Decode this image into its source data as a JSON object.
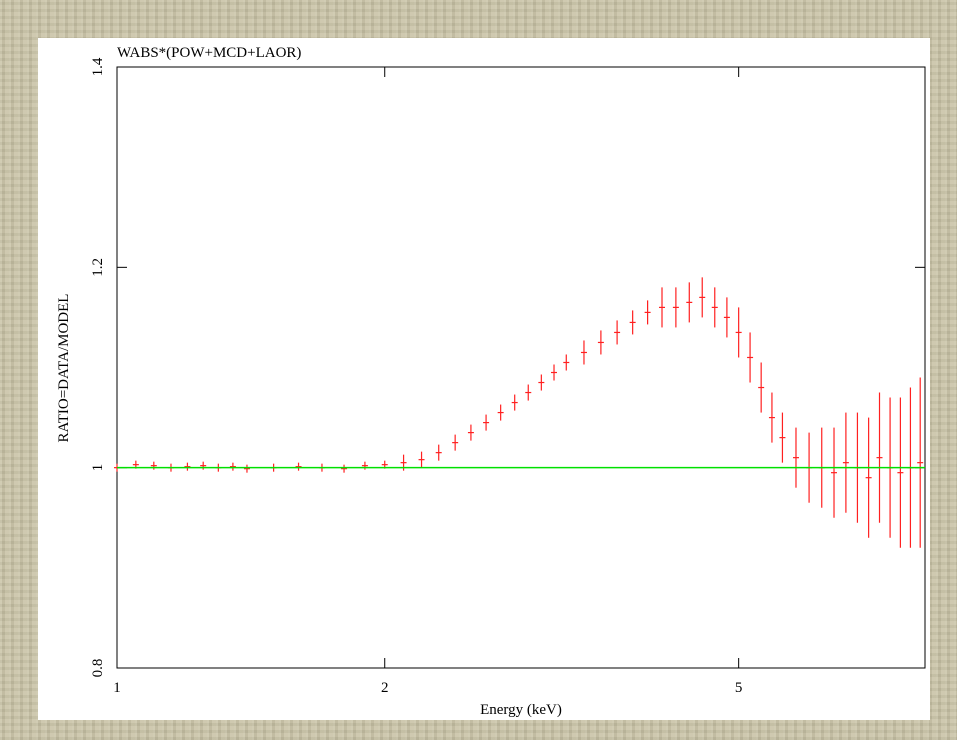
{
  "chart_data": {
    "type": "errorbar",
    "title": "WABS*(POW+MCD+LAOR)",
    "x_label": "Energy (keV)",
    "y_label": "RATIO=DATA/MODEL",
    "xscale": "log",
    "xlim": [
      1,
      8.1
    ],
    "xticks": [
      1,
      2,
      5
    ],
    "ylim": [
      0.8,
      1.4
    ],
    "yticks": [
      0.8,
      1,
      1.2,
      1.4
    ],
    "series": [
      {
        "color": "#ff2020",
        "x": [
          1.0,
          1.05,
          1.1,
          1.15,
          1.2,
          1.25,
          1.3,
          1.35,
          1.4,
          1.5,
          1.6,
          1.7,
          1.8,
          1.9,
          2.0,
          2.1,
          2.2,
          2.3,
          2.4,
          2.5,
          2.6,
          2.7,
          2.8,
          2.9,
          3.0,
          3.1,
          3.2,
          3.35,
          3.5,
          3.65,
          3.8,
          3.95,
          4.1,
          4.25,
          4.4,
          4.55,
          4.7,
          4.85,
          5.0,
          5.15,
          5.3,
          5.45,
          5.6,
          5.8,
          6.0,
          6.2,
          6.4,
          6.6,
          6.8,
          7.0,
          7.2,
          7.4,
          7.6,
          7.8,
          8.0
        ],
        "values": [
          1.0,
          1.003,
          1.002,
          1.0,
          1.001,
          1.002,
          1.0,
          1.001,
          0.999,
          1.0,
          1.001,
          1.0,
          0.999,
          1.002,
          1.003,
          1.005,
          1.008,
          1.015,
          1.025,
          1.035,
          1.045,
          1.055,
          1.065,
          1.075,
          1.085,
          1.095,
          1.105,
          1.115,
          1.125,
          1.135,
          1.145,
          1.155,
          1.16,
          1.16,
          1.165,
          1.17,
          1.16,
          1.15,
          1.135,
          1.11,
          1.08,
          1.05,
          1.03,
          1.01,
          1.0,
          1.0,
          0.995,
          1.005,
          1.0,
          0.99,
          1.01,
          1.0,
          0.995,
          1.0,
          1.005
        ],
        "errors": [
          0.004,
          0.004,
          0.004,
          0.004,
          0.004,
          0.004,
          0.004,
          0.004,
          0.004,
          0.004,
          0.004,
          0.004,
          0.004,
          0.004,
          0.004,
          0.008,
          0.008,
          0.008,
          0.008,
          0.008,
          0.008,
          0.008,
          0.008,
          0.008,
          0.008,
          0.008,
          0.008,
          0.012,
          0.012,
          0.012,
          0.012,
          0.012,
          0.02,
          0.02,
          0.02,
          0.02,
          0.02,
          0.02,
          0.025,
          0.025,
          0.025,
          0.025,
          0.025,
          0.03,
          0.035,
          0.04,
          0.045,
          0.05,
          0.055,
          0.06,
          0.065,
          0.07,
          0.075,
          0.08,
          0.085
        ]
      },
      {
        "color": "#00e000",
        "x": [
          1,
          8.1
        ],
        "values": [
          1,
          1
        ]
      }
    ]
  }
}
